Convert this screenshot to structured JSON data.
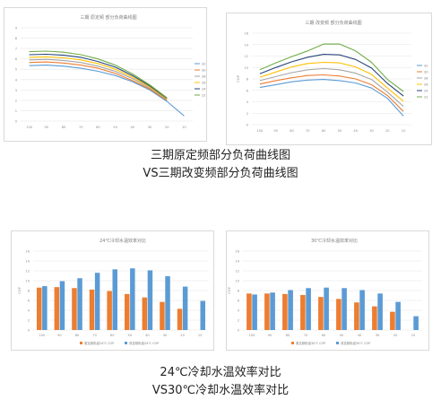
{
  "captions": {
    "line1": "三期原定频部分负荷曲线图",
    "line2": "VS三期改变频部分负荷曲线图",
    "line3": "24℃冷却水温效率对比",
    "line4": "VS30℃冷却水温效率对比"
  },
  "colors": {
    "blue": "#5b9bd5",
    "orange": "#ed7d31",
    "gray": "#a5a5a5",
    "yellow": "#ffc000",
    "navy": "#264478",
    "green": "#70ad47"
  },
  "chart_data": [
    {
      "type": "line",
      "title": "三期 原定频 部分负荷曲线图",
      "x": [
        "100",
        "90",
        "80",
        "70",
        "60",
        "50",
        "40",
        "30",
        "20",
        "10"
      ],
      "y_ticks": [
        "0",
        "1",
        "2",
        "3",
        "4",
        "5",
        "6",
        "7",
        "8",
        "9"
      ],
      "ylim": [
        0,
        9
      ],
      "series": [
        {
          "name": "32",
          "values": [
            5.35,
            5.4,
            5.3,
            5.1,
            4.8,
            4.4,
            3.8,
            3.0,
            1.9,
            0.5
          ]
        },
        {
          "name": "30",
          "values": [
            5.65,
            5.7,
            5.6,
            5.4,
            5.1,
            4.6,
            3.9,
            3.1,
            2.0,
            null
          ]
        },
        {
          "name": "28",
          "values": [
            5.9,
            5.95,
            5.85,
            5.65,
            5.3,
            4.8,
            4.1,
            3.2,
            2.1,
            null
          ]
        },
        {
          "name": "26",
          "values": [
            6.15,
            6.2,
            6.1,
            5.9,
            5.55,
            5.0,
            4.25,
            3.3,
            2.15,
            null
          ]
        },
        {
          "name": "24",
          "values": [
            6.4,
            6.45,
            6.35,
            6.15,
            5.75,
            5.2,
            4.4,
            3.4,
            2.2,
            null
          ]
        },
        {
          "name": "22",
          "values": [
            6.7,
            6.75,
            6.65,
            6.4,
            6.0,
            5.4,
            4.55,
            3.5,
            2.25,
            null
          ]
        }
      ],
      "legend": "right"
    },
    {
      "type": "line",
      "title": "三期 改变频 部分负荷曲线图",
      "x": [
        "100",
        "90",
        "80",
        "70",
        "60",
        "50",
        "40",
        "30",
        "20",
        "10"
      ],
      "y_ticks": [
        "0",
        "2",
        "4",
        "6",
        "8",
        "10",
        "12",
        "14",
        "16"
      ],
      "ylabel": "COP",
      "ylim": [
        0,
        16
      ],
      "series": [
        {
          "name": "32",
          "values": [
            6.5,
            7.0,
            7.5,
            7.8,
            7.9,
            7.7,
            7.3,
            6.4,
            4.6,
            1.5
          ]
        },
        {
          "name": "30",
          "values": [
            7.1,
            7.7,
            8.2,
            8.6,
            8.7,
            8.5,
            8.0,
            7.0,
            5.1,
            2.3
          ]
        },
        {
          "name": "28",
          "values": [
            7.7,
            8.4,
            9.1,
            9.6,
            9.8,
            9.6,
            9.0,
            7.9,
            5.7,
            3.2
          ]
        },
        {
          "name": "26",
          "values": [
            8.3,
            9.2,
            10.1,
            10.7,
            10.9,
            10.8,
            10.1,
            8.8,
            6.4,
            4.1
          ]
        },
        {
          "name": "24",
          "values": [
            8.9,
            10.0,
            11.0,
            11.8,
            12.3,
            12.2,
            11.4,
            9.9,
            7.2,
            5.0
          ]
        },
        {
          "name": "22",
          "values": [
            9.6,
            10.8,
            11.9,
            12.9,
            14.1,
            14.1,
            12.9,
            10.9,
            7.9,
            5.8
          ]
        }
      ],
      "legend": "right"
    },
    {
      "type": "bar",
      "title": "24℃冷却水温效率对比",
      "categories": [
        "100",
        "90",
        "80",
        "70",
        "60",
        "50",
        "40",
        "30",
        "20",
        "10"
      ],
      "y_ticks": [
        "0",
        "2",
        "4",
        "6",
        "8",
        "10",
        "12",
        "14",
        "16"
      ],
      "ylabel": "COP",
      "ylim": [
        0,
        16
      ],
      "series": [
        {
          "name": "原定频机组24℃ COP",
          "values": [
            8.6,
            8.7,
            8.5,
            8.2,
            7.9,
            7.3,
            6.6,
            5.7,
            4.3,
            null
          ]
        },
        {
          "name": "改变频机组24℃ COP",
          "values": [
            8.9,
            9.9,
            10.5,
            11.6,
            12.3,
            12.5,
            12.1,
            10.9,
            8.8,
            5.9
          ]
        }
      ],
      "legend": "bottom"
    },
    {
      "type": "bar",
      "title": "30℃冷却水温效率对比",
      "categories": [
        "100",
        "90",
        "80",
        "70",
        "60",
        "50",
        "40",
        "30",
        "20",
        "10"
      ],
      "y_ticks": [
        "0",
        "2",
        "4",
        "6",
        "8",
        "10",
        "12",
        "14",
        "16"
      ],
      "ylabel": "COP",
      "ylim": [
        0,
        16
      ],
      "series": [
        {
          "name": "原定频机组30℃ COP",
          "values": [
            7.4,
            7.4,
            7.3,
            7.1,
            6.7,
            6.3,
            5.6,
            4.8,
            3.7,
            null
          ]
        },
        {
          "name": "改变频机组30℃ COP",
          "values": [
            7.2,
            7.6,
            8.1,
            8.5,
            8.6,
            8.5,
            8.1,
            7.4,
            5.7,
            2.8
          ]
        }
      ],
      "legend": "bottom"
    }
  ]
}
